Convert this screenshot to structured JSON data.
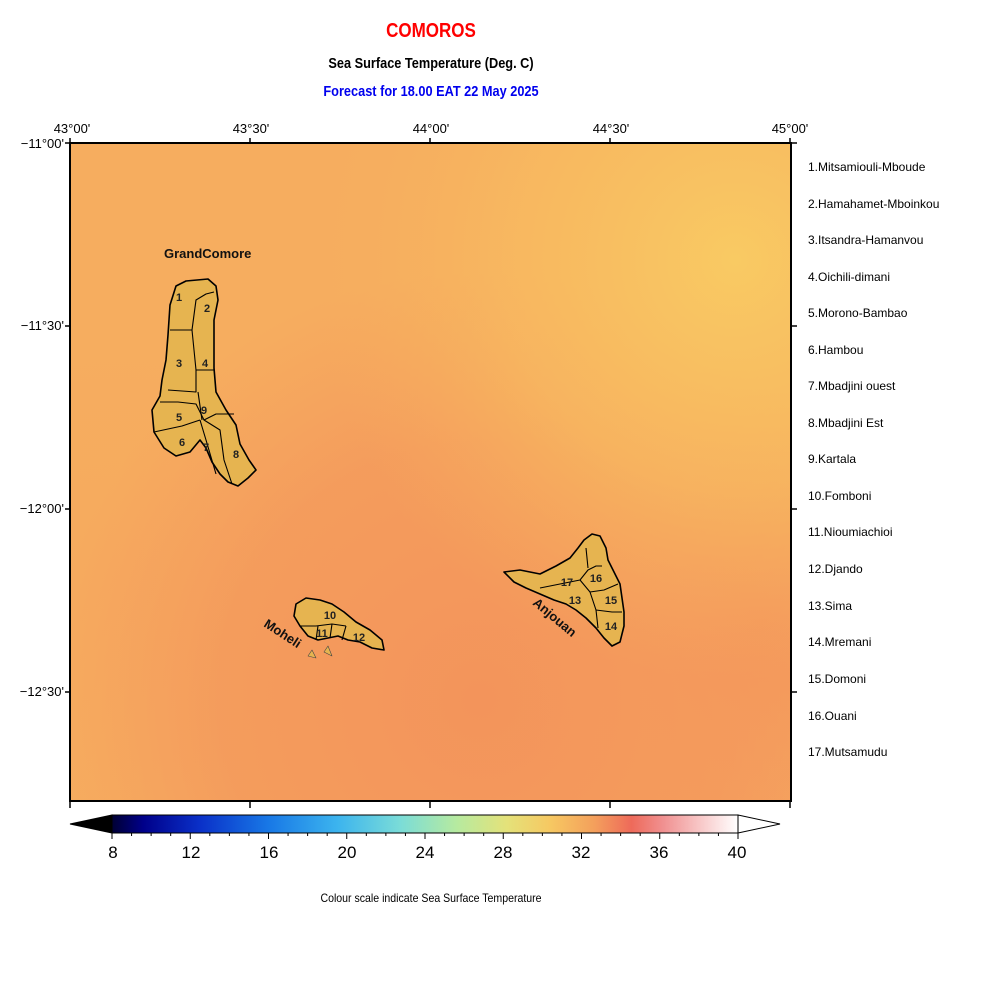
{
  "header": {
    "country": "COMOROS",
    "product": "Sea Surface Temperature (Deg. C)",
    "forecast": "Forecast for  18.00 EAT 22 May 2025"
  },
  "axes": {
    "lon_ticks": [
      "43°00'",
      "43°30'",
      "44°00'",
      "44°30'",
      "45°00'"
    ],
    "lat_ticks": [
      "−11°00'",
      "−11°30'",
      "−12°00'",
      "−12°30'"
    ]
  },
  "islands": {
    "grand_comore": "GrandComore",
    "moheli": "Moheli",
    "anjouan": "Anjouan"
  },
  "regions": [
    "1.Mitsamiouli-Mboude",
    "2.Hamahamet-Mboinkou",
    "3.Itsandra-Hamanvou",
    "4.Oichili-dimani",
    "5.Morono-Bambao",
    "6.Hambou",
    "7.Mbadjini ouest",
    "8.Mbadjini Est",
    "9.Kartala",
    "10.Fomboni",
    "11.Nioumiachioi",
    "12.Djando",
    "13.Sima",
    "14.Mremani",
    "15.Domoni",
    "16.Ouani",
    "17.Mutsamudu"
  ],
  "region_numbers": [
    "1",
    "2",
    "3",
    "4",
    "5",
    "6",
    "7",
    "8",
    "9",
    "10",
    "11",
    "12",
    "13",
    "14",
    "15",
    "16",
    "17"
  ],
  "colorbar": {
    "ticks": [
      "8",
      "12",
      "16",
      "20",
      "24",
      "28",
      "32",
      "36",
      "40"
    ],
    "min": 8,
    "max": 40,
    "caption": "Colour scale indicate Sea Surface Temperature"
  },
  "colors": {
    "title": "#ff0000",
    "forecast": "#0000ee",
    "sea_warm": "#f49a5e",
    "sea_mild": "#f6b25f",
    "sea_cool": "#f8c862",
    "land": "#e6b450"
  }
}
